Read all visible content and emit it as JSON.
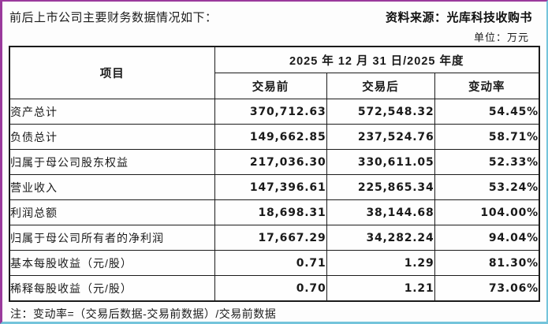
{
  "page": {
    "title": "前后上市公司主要财务数据情况如下：",
    "source": "资料来源：光库科技收购书",
    "unit": "单位：万元",
    "note": "注：变动率=（交易后数据-交易前数据）/交易前数据"
  },
  "table": {
    "header": {
      "item_col": "项目",
      "period": "2025 年 12 月 31 日/2025 年度",
      "sub_columns": [
        "交易前",
        "交易后",
        "变动率"
      ]
    },
    "rows": [
      {
        "label": "资产总计",
        "before": "370,712.63",
        "after": "572,548.32",
        "change": "54.45%"
      },
      {
        "label": "负债总计",
        "before": "149,662.85",
        "after": "237,524.76",
        "change": "58.71%"
      },
      {
        "label": "归属于母公司股东权益",
        "before": "217,036.30",
        "after": "330,611.05",
        "change": "52.33%"
      },
      {
        "label": "营业收入",
        "before": "147,396.61",
        "after": "225,865.34",
        "change": "53.24%"
      },
      {
        "label": "利润总额",
        "before": "18,698.31",
        "after": "38,144.68",
        "change": "104.00%"
      },
      {
        "label": "归属于母公司所有者的净利润",
        "before": "17,667.29",
        "after": "34,282.24",
        "change": "94.04%"
      },
      {
        "label": "基本每股收益（元/股）",
        "before": "0.71",
        "after": "1.29",
        "change": "81.30%"
      },
      {
        "label": "稀释每股收益（元/股）",
        "before": "0.70",
        "after": "1.21",
        "change": "73.06%"
      }
    ]
  },
  "colors": {
    "frame_top_left": "#9a3a9c",
    "frame_bottom_right": "#74c4db",
    "table_border": "#1b1b1b",
    "text": "#1a1a1a"
  }
}
